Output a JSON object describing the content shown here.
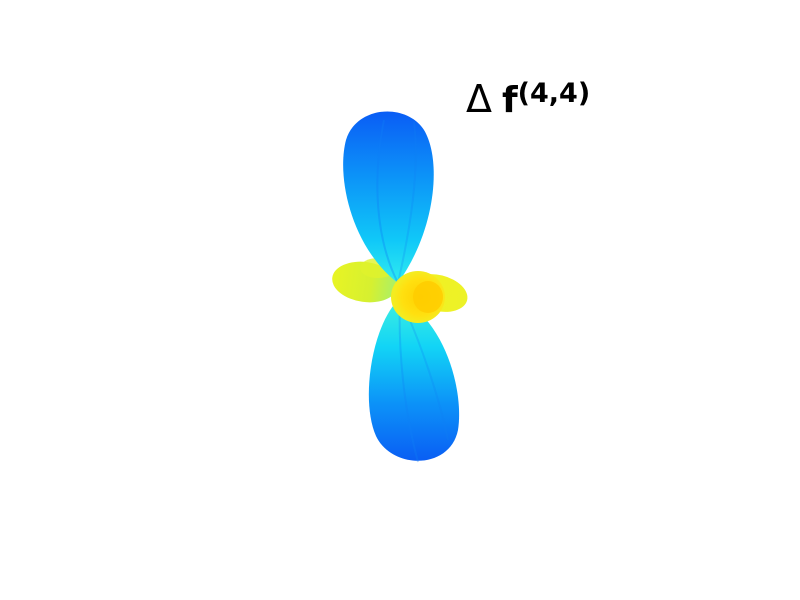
{
  "figure": {
    "title_symbol": "Δ",
    "title_function": "f",
    "title_superscript": "(4,4)"
  },
  "colors": {
    "background": "#ffffff",
    "lobe_tip": "#0a5df5",
    "lobe_mid": "#14a8f8",
    "lobe_neck": "#22e8f0",
    "side_lobe": "#e6f020",
    "center": "#ffd400"
  }
}
